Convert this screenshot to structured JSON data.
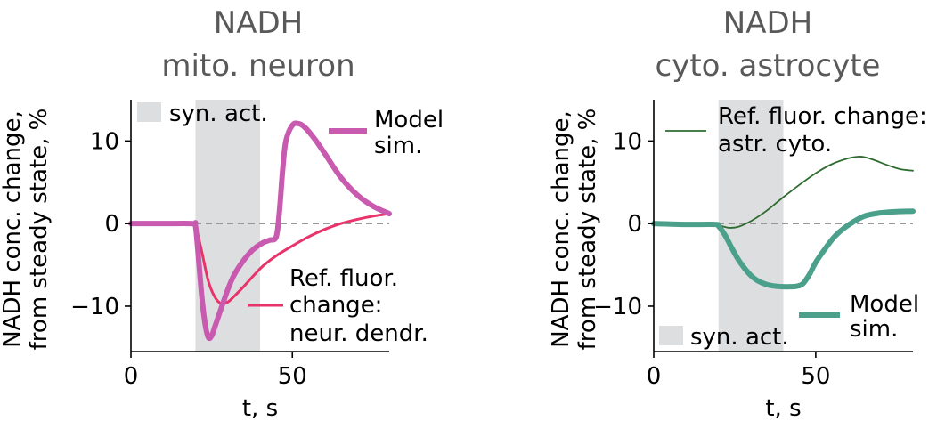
{
  "chart_data": [
    {
      "type": "line",
      "title": "NADH",
      "subtitle": "mito. neuron",
      "xlabel": "t, s",
      "ylabel": [
        "NADH conc. change,",
        "from steady state, %"
      ],
      "xlim": [
        0,
        80
      ],
      "ylim": [
        -15.5,
        15
      ],
      "xticks": [
        0,
        50
      ],
      "yticks": [
        {
          "value": 10,
          "label": "10"
        },
        {
          "value": 0,
          "label": "0"
        },
        {
          "value": -10,
          "label": "−10"
        }
      ],
      "shaded_region": {
        "x": [
          20,
          40
        ],
        "label": "syn. act.",
        "color": "#dddee0"
      },
      "zero_line": true,
      "series": [
        {
          "name": "Ref. fluor. change: neur. dendr.",
          "label_lines": [
            "Ref. fluor.",
            "change:",
            "neur. dendr."
          ],
          "color": "#e8336b",
          "width": 3,
          "x": [
            0,
            10,
            19,
            20,
            22,
            24,
            26,
            28,
            30,
            32,
            35,
            38,
            41,
            45,
            50,
            55,
            60,
            65,
            70,
            75,
            80
          ],
          "y": [
            0,
            0,
            0,
            -0.2,
            -3.5,
            -7,
            -8.9,
            -9.7,
            -9.5,
            -8.8,
            -7.6,
            -6.3,
            -5.1,
            -3.9,
            -2.7,
            -1.6,
            -0.7,
            0,
            0.5,
            0.9,
            1.2
          ]
        },
        {
          "name": "Model sim.",
          "label_lines": [
            "Model",
            "sim."
          ],
          "color": "#c85aaf",
          "width": 6,
          "x": [
            0,
            10,
            19,
            20,
            21,
            22,
            23,
            24,
            25,
            26,
            28,
            30,
            32,
            35,
            38,
            41,
            43,
            45,
            46,
            47,
            48,
            50,
            52,
            54,
            57,
            60,
            65,
            70,
            75,
            80
          ],
          "y": [
            0,
            0,
            0,
            -0.3,
            -4.5,
            -9,
            -12.2,
            -13.8,
            -13.6,
            -12.5,
            -10.2,
            -8,
            -6.2,
            -4.4,
            -3.1,
            -2.3,
            -2,
            -1.6,
            1.5,
            6.5,
            10,
            11.9,
            12.1,
            11.6,
            10.2,
            8.5,
            5.6,
            3.5,
            2.1,
            1.2
          ]
        }
      ]
    },
    {
      "type": "line",
      "title": "NADH",
      "subtitle": "cyto. astrocyte",
      "xlabel": "t, s",
      "ylabel": [
        "NADH conc. change,",
        "from steady state, %"
      ],
      "xlim": [
        0,
        80
      ],
      "ylim": [
        -15.5,
        15
      ],
      "xticks": [
        0,
        50
      ],
      "yticks": [
        {
          "value": 10,
          "label": "10"
        },
        {
          "value": 0,
          "label": "0"
        },
        {
          "value": -10,
          "label": "−10"
        }
      ],
      "shaded_region": {
        "x": [
          20,
          40
        ],
        "label": "syn. act.",
        "color": "#dddee0"
      },
      "zero_line": true,
      "series": [
        {
          "name": "Ref. fluor. change: astr. cyto.",
          "label_lines": [
            "Ref. fluor. change:",
            "astr. cyto."
          ],
          "color": "#2d6b2f",
          "width": 1.8,
          "x": [
            0,
            10,
            18,
            20,
            23,
            26,
            30,
            35,
            40,
            45,
            50,
            55,
            60,
            63,
            65,
            68,
            72,
            76,
            80
          ],
          "y": [
            0,
            0,
            -0.1,
            -0.2,
            -0.5,
            -0.4,
            0.3,
            1.6,
            3.2,
            4.7,
            6.1,
            7.2,
            7.9,
            8.1,
            8.05,
            7.7,
            7.1,
            6.6,
            6.4
          ]
        },
        {
          "name": "Model sim.",
          "label_lines": [
            "Model",
            "sim."
          ],
          "color": "#4aa08a",
          "width": 6,
          "x": [
            0,
            10,
            19,
            20,
            22,
            24,
            26,
            28,
            30,
            32,
            35,
            38,
            40,
            42,
            44,
            46,
            48,
            50,
            53,
            56,
            60,
            65,
            70,
            75,
            80
          ],
          "y": [
            0,
            -0.1,
            -0.1,
            -0.3,
            -1.4,
            -2.9,
            -4.3,
            -5.4,
            -6.3,
            -6.9,
            -7.4,
            -7.6,
            -7.65,
            -7.65,
            -7.6,
            -7.3,
            -6.2,
            -4.7,
            -3,
            -1.5,
            -0.2,
            0.9,
            1.3,
            1.45,
            1.5
          ]
        }
      ]
    }
  ]
}
